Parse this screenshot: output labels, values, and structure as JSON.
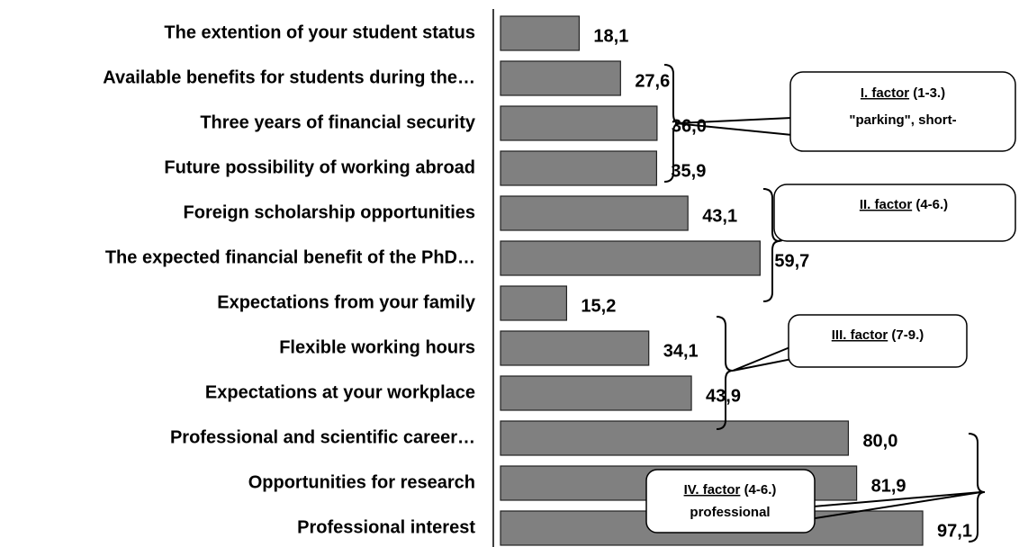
{
  "chart_data": {
    "type": "bar",
    "orientation": "horizontal",
    "categories": [
      "The extention of your student status",
      "Available benefits for students during the…",
      "Three years of financial security",
      "Future possibility of working abroad",
      "Foreign scholarship opportunities",
      "The expected financial benefit of the PhD…",
      "Expectations from your family",
      "Flexible working hours",
      "Expectations at your workplace",
      "Professional and scientific career…",
      "Opportunities for research",
      "Professional interest"
    ],
    "values": [
      18.1,
      27.6,
      36.0,
      35.9,
      43.1,
      59.7,
      15.2,
      34.1,
      43.9,
      80.0,
      81.9,
      97.1
    ],
    "value_labels": [
      "18,1",
      "27,6",
      "36,0",
      "35,9",
      "43,1",
      "59,7",
      "15,2",
      "34,1",
      "43,9",
      "80,0",
      "81,9",
      "97,1"
    ],
    "color": "#808080",
    "xlim": [
      0,
      118
    ],
    "annotations": [
      {
        "label": "I. factor",
        "range": "(1-3.)",
        "text": "\"parking\", short-"
      },
      {
        "label": "II. factor",
        "range": "(4-6.)"
      },
      {
        "label": "III. factor",
        "range": "(7-9.)"
      },
      {
        "label": "IV. factor",
        "range": "(4-6.)",
        "text": "professional"
      }
    ]
  }
}
